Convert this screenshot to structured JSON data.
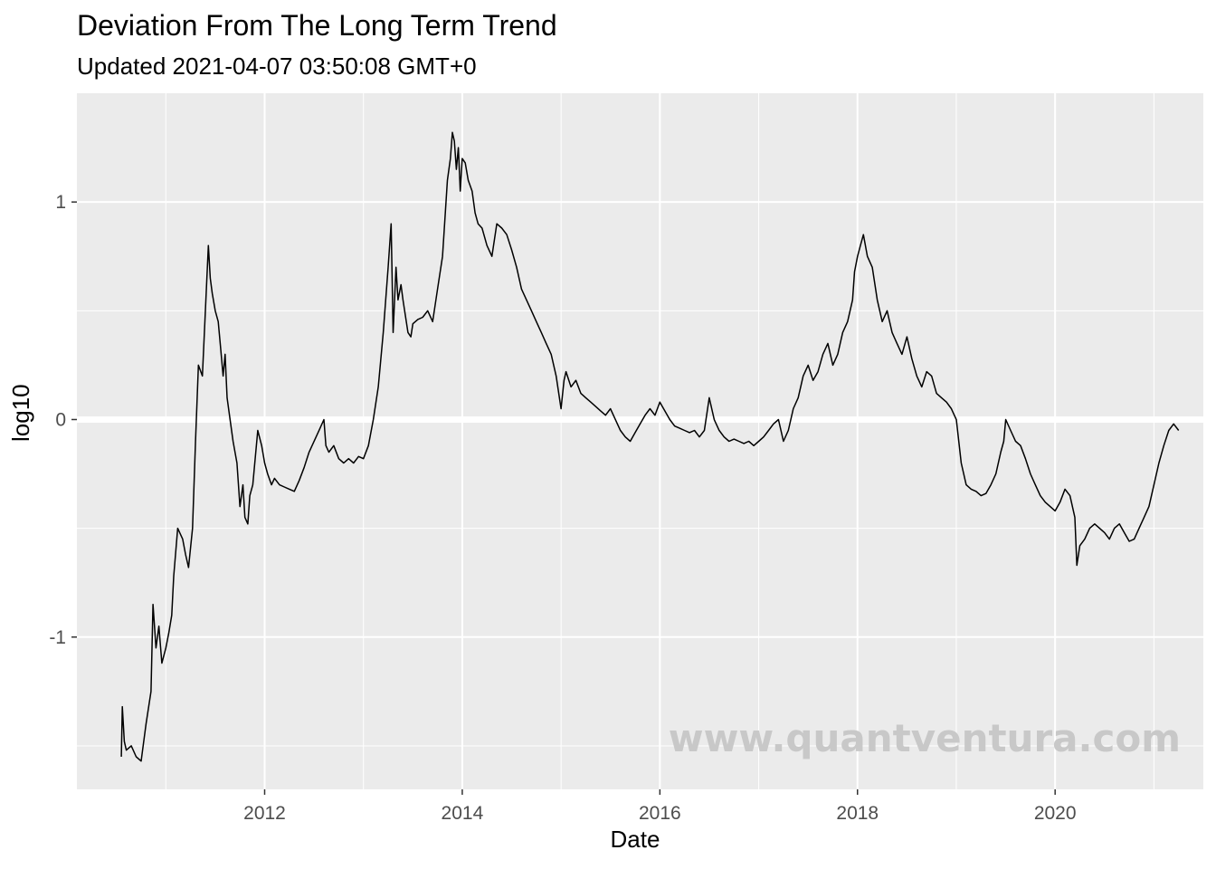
{
  "chart_data": {
    "type": "line",
    "title": "Deviation From The Long Term Trend",
    "subtitle": "Updated 2021-04-07 03:50:08 GMT+0",
    "xlabel": "Date",
    "ylabel": "log10",
    "x_ticks": [
      "2012",
      "2014",
      "2016",
      "2018",
      "2020"
    ],
    "x_tick_values": [
      2012,
      2014,
      2016,
      2018,
      2020
    ],
    "y_ticks": [
      "-1",
      "0",
      "1"
    ],
    "y_tick_values": [
      -1,
      0,
      1
    ],
    "xlim": [
      2010.1,
      2021.5
    ],
    "ylim": [
      -1.7,
      1.5
    ],
    "grid": true,
    "reference_line": 0,
    "watermark": "www.quantventura.com",
    "colors": {
      "panel": "#ebebeb",
      "grid": "#ffffff",
      "line": "#000000",
      "watermark": "#c8c8c8"
    },
    "series": [
      {
        "x": [
          2010.55,
          2010.56,
          2010.58,
          2010.6,
          2010.65,
          2010.7,
          2010.75,
          2010.8,
          2010.85,
          2010.87,
          2010.9,
          2010.93,
          2010.96,
          2011.0,
          2011.03,
          2011.06,
          2011.08,
          2011.12,
          2011.17,
          2011.2,
          2011.23,
          2011.27,
          2011.3,
          2011.33,
          2011.37,
          2011.4,
          2011.43,
          2011.45,
          2011.47,
          2011.5,
          2011.53,
          2011.55,
          2011.58,
          2011.6,
          2011.62,
          2011.65,
          2011.68,
          2011.72,
          2011.75,
          2011.78,
          2011.8,
          2011.83,
          2011.85,
          2011.88,
          2011.9,
          2011.93,
          2011.97,
          2012.0,
          2012.03,
          2012.07,
          2012.1,
          2012.15,
          2012.2,
          2012.25,
          2012.3,
          2012.35,
          2012.4,
          2012.45,
          2012.5,
          2012.55,
          2012.6,
          2012.62,
          2012.65,
          2012.7,
          2012.75,
          2012.8,
          2012.85,
          2012.9,
          2012.95,
          2013.0,
          2013.05,
          2013.1,
          2013.15,
          2013.2,
          2013.25,
          2013.28,
          2013.3,
          2013.33,
          2013.35,
          2013.38,
          2013.4,
          2013.45,
          2013.48,
          2013.5,
          2013.55,
          2013.6,
          2013.65,
          2013.7,
          2013.75,
          2013.8,
          2013.85,
          2013.88,
          2013.9,
          2013.92,
          2013.94,
          2013.96,
          2013.98,
          2014.0,
          2014.03,
          2014.06,
          2014.1,
          2014.13,
          2014.16,
          2014.2,
          2014.25,
          2014.3,
          2014.35,
          2014.4,
          2014.45,
          2014.5,
          2014.55,
          2014.6,
          2014.65,
          2014.7,
          2014.75,
          2014.8,
          2014.85,
          2014.9,
          2014.95,
          2015.0,
          2015.03,
          2015.05,
          2015.1,
          2015.15,
          2015.2,
          2015.25,
          2015.3,
          2015.35,
          2015.4,
          2015.45,
          2015.5,
          2015.55,
          2015.6,
          2015.65,
          2015.7,
          2015.75,
          2015.8,
          2015.85,
          2015.9,
          2015.95,
          2016.0,
          2016.05,
          2016.1,
          2016.15,
          2016.2,
          2016.25,
          2016.3,
          2016.35,
          2016.4,
          2016.45,
          2016.5,
          2016.55,
          2016.6,
          2016.65,
          2016.7,
          2016.75,
          2016.8,
          2016.85,
          2016.9,
          2016.95,
          2017.0,
          2017.05,
          2017.1,
          2017.15,
          2017.2,
          2017.25,
          2017.3,
          2017.35,
          2017.4,
          2017.45,
          2017.5,
          2017.55,
          2017.6,
          2017.65,
          2017.7,
          2017.75,
          2017.8,
          2017.85,
          2017.9,
          2017.95,
          2017.97,
          2018.0,
          2018.03,
          2018.06,
          2018.1,
          2018.15,
          2018.2,
          2018.25,
          2018.3,
          2018.35,
          2018.4,
          2018.45,
          2018.5,
          2018.55,
          2018.6,
          2018.65,
          2018.7,
          2018.75,
          2018.8,
          2018.85,
          2018.9,
          2018.95,
          2019.0,
          2019.05,
          2019.1,
          2019.15,
          2019.2,
          2019.25,
          2019.3,
          2019.35,
          2019.4,
          2019.45,
          2019.48,
          2019.5,
          2019.55,
          2019.6,
          2019.65,
          2019.7,
          2019.75,
          2019.8,
          2019.85,
          2019.9,
          2019.95,
          2020.0,
          2020.05,
          2020.1,
          2020.15,
          2020.2,
          2020.22,
          2020.25,
          2020.3,
          2020.35,
          2020.4,
          2020.45,
          2020.5,
          2020.55,
          2020.6,
          2020.65,
          2020.7,
          2020.75,
          2020.8,
          2020.85,
          2020.9,
          2020.95,
          2021.0,
          2021.05,
          2021.1,
          2021.15,
          2021.2,
          2021.25
        ],
        "y": [
          -1.55,
          -1.32,
          -1.48,
          -1.52,
          -1.5,
          -1.55,
          -1.57,
          -1.4,
          -1.25,
          -0.85,
          -1.05,
          -0.95,
          -1.12,
          -1.05,
          -0.98,
          -0.9,
          -0.72,
          -0.5,
          -0.55,
          -0.62,
          -0.68,
          -0.5,
          -0.1,
          0.25,
          0.2,
          0.5,
          0.8,
          0.65,
          0.58,
          0.5,
          0.45,
          0.35,
          0.2,
          0.3,
          0.1,
          0.0,
          -0.1,
          -0.2,
          -0.4,
          -0.3,
          -0.45,
          -0.48,
          -0.35,
          -0.3,
          -0.2,
          -0.05,
          -0.12,
          -0.2,
          -0.25,
          -0.3,
          -0.27,
          -0.3,
          -0.31,
          -0.32,
          -0.33,
          -0.28,
          -0.22,
          -0.15,
          -0.1,
          -0.05,
          0.0,
          -0.12,
          -0.15,
          -0.12,
          -0.18,
          -0.2,
          -0.18,
          -0.2,
          -0.17,
          -0.18,
          -0.12,
          0.0,
          0.15,
          0.4,
          0.7,
          0.9,
          0.4,
          0.7,
          0.55,
          0.62,
          0.55,
          0.4,
          0.38,
          0.44,
          0.46,
          0.47,
          0.5,
          0.45,
          0.6,
          0.75,
          1.1,
          1.2,
          1.32,
          1.28,
          1.15,
          1.25,
          1.05,
          1.2,
          1.18,
          1.1,
          1.05,
          0.95,
          0.9,
          0.88,
          0.8,
          0.75,
          0.9,
          0.88,
          0.85,
          0.78,
          0.7,
          0.6,
          0.55,
          0.5,
          0.45,
          0.4,
          0.35,
          0.3,
          0.2,
          0.05,
          0.18,
          0.22,
          0.15,
          0.18,
          0.12,
          0.1,
          0.08,
          0.06,
          0.04,
          0.02,
          0.05,
          0.0,
          -0.05,
          -0.08,
          -0.1,
          -0.06,
          -0.02,
          0.02,
          0.05,
          0.02,
          0.08,
          0.04,
          0.0,
          -0.03,
          -0.04,
          -0.05,
          -0.06,
          -0.05,
          -0.08,
          -0.05,
          0.1,
          0.0,
          -0.05,
          -0.08,
          -0.1,
          -0.09,
          -0.1,
          -0.11,
          -0.1,
          -0.12,
          -0.1,
          -0.08,
          -0.05,
          -0.02,
          0.0,
          -0.1,
          -0.05,
          0.05,
          0.1,
          0.2,
          0.25,
          0.18,
          0.22,
          0.3,
          0.35,
          0.25,
          0.3,
          0.4,
          0.45,
          0.55,
          0.68,
          0.75,
          0.8,
          0.85,
          0.75,
          0.7,
          0.55,
          0.45,
          0.5,
          0.4,
          0.35,
          0.3,
          0.38,
          0.28,
          0.2,
          0.15,
          0.22,
          0.2,
          0.12,
          0.1,
          0.08,
          0.05,
          0.0,
          -0.2,
          -0.3,
          -0.32,
          -0.33,
          -0.35,
          -0.34,
          -0.3,
          -0.25,
          -0.15,
          -0.1,
          0.0,
          -0.05,
          -0.1,
          -0.12,
          -0.18,
          -0.25,
          -0.3,
          -0.35,
          -0.38,
          -0.4,
          -0.42,
          -0.38,
          -0.32,
          -0.35,
          -0.45,
          -0.67,
          -0.58,
          -0.55,
          -0.5,
          -0.48,
          -0.5,
          -0.52,
          -0.55,
          -0.5,
          -0.48,
          -0.52,
          -0.56,
          -0.55,
          -0.5,
          -0.45,
          -0.4,
          -0.3,
          -0.2,
          -0.12,
          -0.05,
          -0.02,
          -0.05
        ]
      }
    ]
  }
}
